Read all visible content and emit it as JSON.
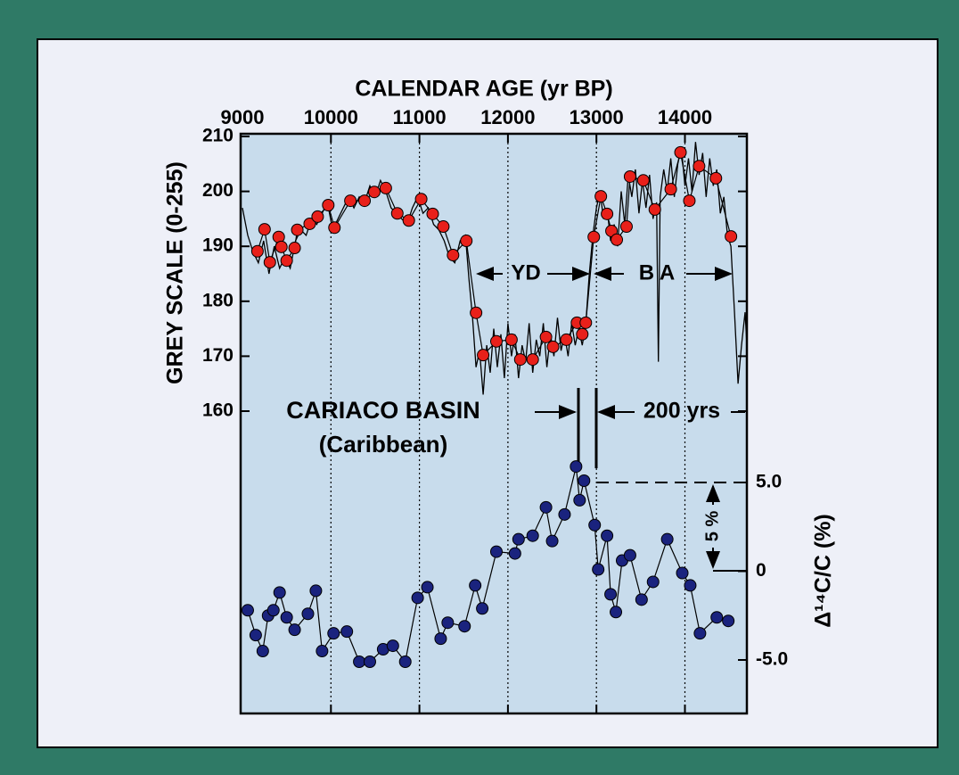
{
  "chart_data": [
    {
      "type": "line",
      "title": "CALENDAR AGE (yr BP)",
      "ylabel": "GREY SCALE (0-255)",
      "xlim": [
        9000,
        14700
      ],
      "xticks": [
        9000,
        10000,
        11000,
        12000,
        13000,
        14000
      ],
      "ylim": [
        160,
        210
      ],
      "yticks": [
        160,
        170,
        180,
        190,
        200,
        210
      ],
      "annotations": [
        "YD",
        "B A",
        "CARIACO BASIN",
        "(Caribbean)",
        "200 yrs"
      ],
      "series": [
        {
          "name": "grey scale record",
          "color": "#000000",
          "marker": "none",
          "x": [
            9000,
            9060,
            9120,
            9180,
            9240,
            9300,
            9360,
            9420,
            9480,
            9540,
            9600,
            9660,
            9720,
            9780,
            9840,
            9900,
            9960,
            10020,
            10080,
            10140,
            10200,
            10260,
            10320,
            10380,
            10440,
            10500,
            10560,
            10620,
            10680,
            10740,
            10800,
            10860,
            10920,
            10980,
            11040,
            11100,
            11160,
            11220,
            11280,
            11340,
            11400,
            11460,
            11520,
            11560,
            11600,
            11640,
            11680,
            11720,
            11760,
            11800,
            11840,
            11880,
            11920,
            11960,
            12000,
            12040,
            12080,
            12120,
            12160,
            12200,
            12240,
            12280,
            12320,
            12360,
            12400,
            12440,
            12480,
            12520,
            12560,
            12600,
            12640,
            12680,
            12720,
            12760,
            12800,
            12840,
            12880,
            12920,
            12960,
            13000,
            13040,
            13080,
            13120,
            13160,
            13200,
            13240,
            13280,
            13320,
            13360,
            13400,
            13440,
            13480,
            13520,
            13560,
            13600,
            13640,
            13680,
            13700,
            13720,
            13760,
            13800,
            13840,
            13880,
            13920,
            13960,
            14000,
            14040,
            14080,
            14120,
            14160,
            14200,
            14240,
            14280,
            14320,
            14360,
            14400,
            14440,
            14480,
            14520,
            14560,
            14600,
            14640,
            14680,
            14700
          ],
          "values": [
            197,
            192,
            189,
            187,
            191,
            185,
            190,
            186,
            188,
            186,
            191,
            193,
            192,
            195,
            194,
            196,
            198,
            193,
            195,
            197,
            199,
            197,
            199,
            198,
            201,
            199,
            202,
            200,
            197,
            196,
            195,
            194,
            197,
            199,
            196,
            197,
            194,
            193,
            191,
            188,
            187,
            191,
            192,
            184,
            177,
            168,
            171,
            163,
            172,
            167,
            175,
            168,
            174,
            166,
            176,
            170,
            174,
            166,
            172,
            169,
            176,
            167,
            173,
            170,
            176,
            168,
            174,
            170,
            177,
            171,
            174,
            170,
            176,
            172,
            175,
            172,
            176,
            185,
            192,
            197,
            200,
            195,
            197,
            191,
            194,
            190,
            200,
            194,
            203,
            199,
            204,
            196,
            202,
            197,
            203,
            195,
            198,
            169,
            199,
            204,
            200,
            206,
            199,
            205,
            208,
            201,
            206,
            200,
            209,
            203,
            207,
            199,
            206,
            201,
            204,
            196,
            199,
            192,
            190,
            178,
            165,
            172,
            178,
            172
          ]
        },
        {
          "name": "grey scale samples",
          "color": "#e8201a",
          "marker": "circle",
          "x": [
            9170,
            9250,
            9310,
            9410,
            9440,
            9500,
            9590,
            9620,
            9760,
            9850,
            9970,
            10040,
            10220,
            10380,
            10490,
            10620,
            10750,
            10880,
            11020,
            11150,
            11270,
            11380,
            11530,
            11640,
            11720,
            11870,
            12040,
            12140,
            12280,
            12430,
            12510,
            12660,
            12780,
            12840,
            12880,
            12970,
            13050,
            13120,
            13170,
            13230,
            13340,
            13380,
            13530,
            13660,
            13840,
            13950,
            14050,
            14160,
            14350,
            14520
          ],
          "values": [
            189.1,
            193.1,
            187.1,
            191.7,
            189.9,
            187.4,
            189.7,
            193.0,
            194.1,
            195.4,
            197.5,
            193.4,
            198.3,
            198.3,
            199.9,
            200.6,
            196.0,
            194.7,
            198.6,
            195.9,
            193.6,
            188.4,
            191.0,
            177.9,
            170.2,
            172.7,
            173.0,
            169.4,
            169.4,
            173.5,
            171.7,
            173.0,
            176.1,
            174.0,
            176.1,
            191.7,
            199.1,
            195.9,
            192.8,
            191.2,
            193.6,
            202.7,
            202.0,
            196.7,
            200.4,
            207.1,
            198.3,
            204.6,
            202.4,
            191.8
          ]
        }
      ]
    },
    {
      "type": "line",
      "ylabel": "Δ¹⁴C/C (%)",
      "xlim": [
        9000,
        14700
      ],
      "ylim": [
        -5,
        5
      ],
      "yticks": [
        {
          "value": -5,
          "label": "-5.0"
        },
        0,
        {
          "value": 5,
          "label": "5.0"
        }
      ],
      "annotations": [
        "5 %"
      ],
      "series": [
        {
          "name": "Δ¹⁴C/C",
          "color": "#1a237e",
          "marker": "circle",
          "x": [
            9060,
            9150,
            9230,
            9290,
            9350,
            9420,
            9500,
            9590,
            9740,
            9830,
            9900,
            10030,
            10180,
            10320,
            10440,
            10590,
            10700,
            10840,
            10980,
            11090,
            11240,
            11320,
            11510,
            11630,
            11710,
            11870,
            12080,
            12120,
            12280,
            12430,
            12500,
            12640,
            12770,
            12810,
            12860,
            12980,
            13020,
            13120,
            13160,
            13220,
            13290,
            13380,
            13510,
            13640,
            13800,
            13970,
            14060,
            14170,
            14360,
            14490
          ],
          "values": [
            -2.2,
            -3.6,
            -4.5,
            -2.5,
            -2.2,
            -1.2,
            -2.6,
            -3.3,
            -2.4,
            -1.1,
            -4.5,
            -3.5,
            -3.4,
            -5.1,
            -5.1,
            -4.4,
            -4.2,
            -5.1,
            -1.5,
            -0.9,
            -3.8,
            -2.9,
            -3.1,
            -0.8,
            -2.1,
            1.1,
            1.0,
            1.8,
            2.0,
            3.6,
            1.7,
            3.2,
            5.9,
            4.0,
            5.1,
            2.6,
            0.1,
            2.0,
            -1.3,
            -2.3,
            0.6,
            0.9,
            -1.6,
            -0.6,
            1.8,
            -0.1,
            -0.8,
            -3.5,
            -2.6,
            -2.8
          ]
        }
      ]
    }
  ]
}
